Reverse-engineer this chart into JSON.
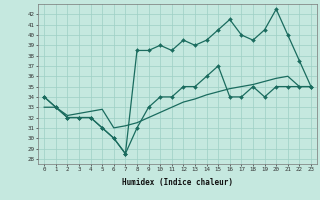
{
  "xlabel": "Humidex (Indice chaleur)",
  "x": [
    0,
    1,
    2,
    3,
    4,
    5,
    6,
    7,
    8,
    9,
    10,
    11,
    12,
    13,
    14,
    15,
    16,
    17,
    18,
    19,
    20,
    21,
    22,
    23
  ],
  "line_max": [
    34,
    33,
    32,
    32,
    32,
    31,
    30,
    28.5,
    38.5,
    38.5,
    39,
    38.5,
    39.5,
    39,
    39.5,
    40.5,
    41.5,
    40,
    39.5,
    40.5,
    42.5,
    40,
    37.5,
    35
  ],
  "line_min": [
    34,
    33,
    32,
    32,
    32,
    31,
    30,
    28.5,
    31,
    33,
    34,
    34,
    35,
    35,
    36,
    37,
    34,
    34,
    35,
    34,
    35,
    35,
    35,
    35
  ],
  "line_trend": [
    33,
    33,
    32.2,
    32.4,
    32.6,
    32.8,
    31,
    31.2,
    31.5,
    32,
    32.5,
    33,
    33.5,
    33.8,
    34.2,
    34.5,
    34.8,
    35,
    35.2,
    35.5,
    35.8,
    36,
    35,
    35
  ],
  "bg_color": "#c5e8df",
  "grid_color": "#9ecfc5",
  "line_color": "#1a6b5e",
  "marker": "D",
  "marker_size": 2,
  "lw": 0.9,
  "ylim": [
    27.5,
    43.0
  ],
  "xlim": [
    -0.5,
    23.5
  ],
  "yticks": [
    28,
    29,
    30,
    31,
    32,
    33,
    34,
    35,
    36,
    37,
    38,
    39,
    40,
    41,
    42
  ],
  "xticks": [
    0,
    1,
    2,
    3,
    4,
    5,
    6,
    7,
    8,
    9,
    10,
    11,
    12,
    13,
    14,
    15,
    16,
    17,
    18,
    19,
    20,
    21,
    22,
    23
  ],
  "tick_fontsize": 4.2,
  "xlabel_fontsize": 5.5
}
